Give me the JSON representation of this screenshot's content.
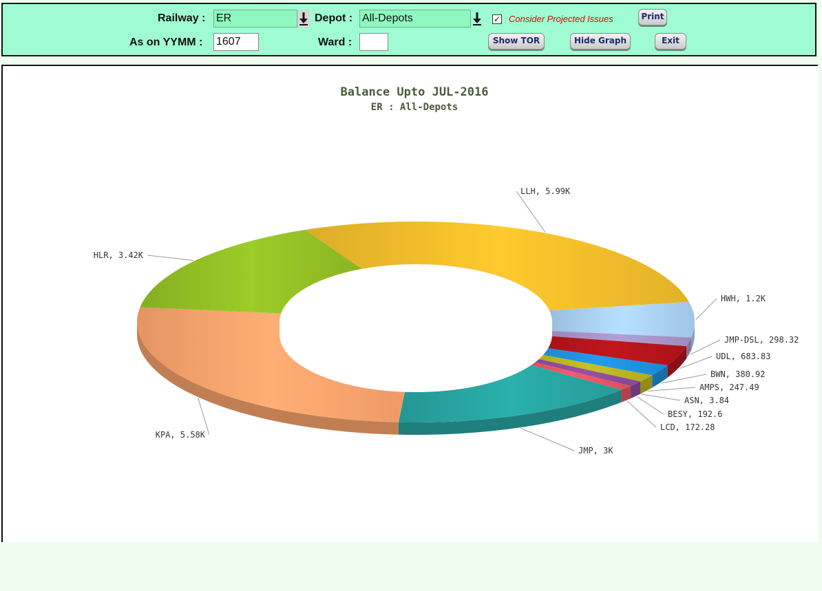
{
  "toolbar": {
    "railway_label": "Railway :",
    "railway_value": "ER",
    "depot_label": "Depot :",
    "depot_value": "All-Depots",
    "consider_label": "Consider Projected Issues",
    "consider_checked": true,
    "print_label": "Print",
    "ason_label": "As on YYMM :",
    "ason_value": "1607",
    "ward_label": "Ward :",
    "ward_value": "",
    "show_tor_label": "Show TOR",
    "hide_graph_label": "Hide Graph",
    "exit_label": "Exit"
  },
  "chart_data": {
    "type": "pie",
    "variant": "3d-donut",
    "title": "Balance Upto JUL-2016",
    "subtitle": "ER : All-Depots",
    "slices": [
      {
        "name": "LLH",
        "value": 5990,
        "label": "LLH, 5.99K",
        "color": "#eebb2a"
      },
      {
        "name": "HWH",
        "value": 1200,
        "label": "HWH, 1.2K",
        "color": "#a9cff0"
      },
      {
        "name": "JMP-DSL",
        "value": 298.32,
        "label": "JMP-DSL, 298.32",
        "color": "#a693c6"
      },
      {
        "name": "UDL",
        "value": 683.83,
        "label": "UDL, 683.83",
        "color": "#b3141a"
      },
      {
        "name": "BWN",
        "value": 380.92,
        "label": "BWN, 380.92",
        "color": "#1e90dd"
      },
      {
        "name": "AMPS",
        "value": 247.49,
        "label": "AMPS, 247.49",
        "color": "#b8b41e"
      },
      {
        "name": "ASN",
        "value": 3.84,
        "label": "ASN, 3.84",
        "color": "#2a6f2a"
      },
      {
        "name": "BESY",
        "value": 192.6,
        "label": "BESY, 192.6",
        "color": "#8e4a9a"
      },
      {
        "name": "LCD",
        "value": 172.28,
        "label": "LCD, 172.28",
        "color": "#e05660"
      },
      {
        "name": "JMP",
        "value": 3000,
        "label": "JMP, 3K",
        "color": "#27a3a0"
      },
      {
        "name": "KPA",
        "value": 5580,
        "label": "KPA, 5.58K",
        "color": "#f9a26b"
      },
      {
        "name": "HLR",
        "value": 3420,
        "label": "HLR, 3.42K",
        "color": "#91bd24"
      }
    ]
  }
}
